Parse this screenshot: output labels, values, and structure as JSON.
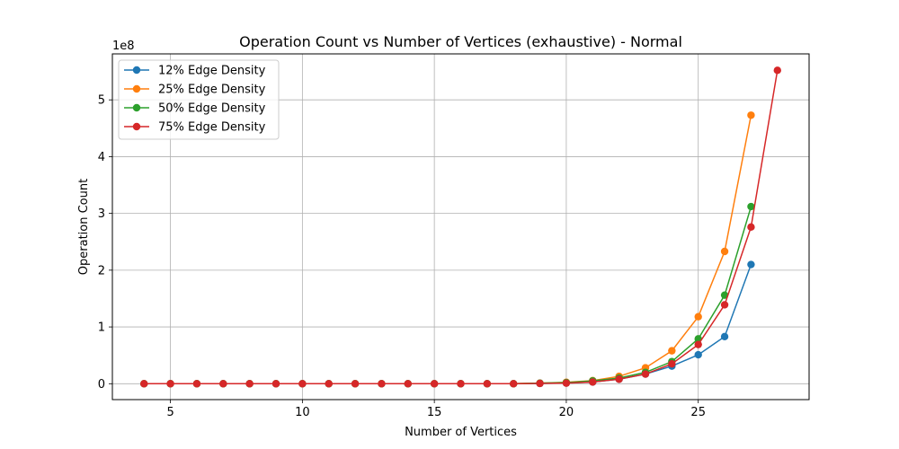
{
  "chart_data": {
    "type": "line",
    "title": "Operation Count vs Number of Vertices (exhaustive) - Normal",
    "xlabel": "Number of Vertices",
    "ylabel": "Operation Count",
    "y_multiplier_label": "1e8",
    "y_scale": 100000000,
    "xlim": [
      2.8,
      29.2
    ],
    "ylim": [
      -0.28,
      5.81
    ],
    "xticks": [
      5,
      10,
      15,
      20,
      25
    ],
    "yticks": [
      0,
      1,
      2,
      3,
      4,
      5
    ],
    "grid": true,
    "legend_position": "top-left",
    "series": [
      {
        "name": "12% Edge Density",
        "color": "#1f77b4",
        "x": [
          4,
          5,
          6,
          7,
          8,
          9,
          10,
          11,
          12,
          13,
          14,
          15,
          16,
          17,
          18,
          19,
          20,
          21,
          22,
          23,
          24,
          25,
          26,
          27
        ],
        "y": [
          0,
          0,
          0,
          0,
          0,
          0,
          0,
          0,
          0,
          0,
          0,
          0,
          0,
          0,
          0,
          0.005,
          0.012,
          0.03,
          0.08,
          0.17,
          0.31,
          0.51,
          0.83,
          2.1
        ]
      },
      {
        "name": "25% Edge Density",
        "color": "#ff7f0e",
        "x": [
          4,
          5,
          6,
          7,
          8,
          9,
          10,
          11,
          12,
          13,
          14,
          15,
          16,
          17,
          18,
          19,
          20,
          21,
          22,
          23,
          24,
          25,
          26,
          27
        ],
        "y": [
          0,
          0,
          0,
          0,
          0,
          0,
          0,
          0,
          0,
          0,
          0,
          0,
          0,
          0,
          0,
          0.01,
          0.025,
          0.055,
          0.13,
          0.28,
          0.58,
          1.18,
          2.33,
          4.73
        ]
      },
      {
        "name": "50% Edge Density",
        "color": "#2ca02c",
        "x": [
          4,
          5,
          6,
          7,
          8,
          9,
          10,
          11,
          12,
          13,
          14,
          15,
          16,
          17,
          18,
          19,
          20,
          21,
          22,
          23,
          24,
          25,
          26,
          27
        ],
        "y": [
          0,
          0,
          0,
          0,
          0,
          0,
          0,
          0,
          0,
          0,
          0,
          0,
          0,
          0,
          0,
          0.01,
          0.02,
          0.05,
          0.1,
          0.2,
          0.39,
          0.79,
          1.56,
          3.12
        ]
      },
      {
        "name": "75% Edge Density",
        "color": "#d62728",
        "x": [
          4,
          5,
          6,
          7,
          8,
          9,
          10,
          11,
          12,
          13,
          14,
          15,
          16,
          17,
          18,
          19,
          20,
          21,
          22,
          23,
          24,
          25,
          26,
          27,
          28
        ],
        "y": [
          0,
          0,
          0,
          0,
          0,
          0,
          0,
          0,
          0,
          0,
          0,
          0,
          0,
          0,
          0,
          0.005,
          0.01,
          0.03,
          0.08,
          0.17,
          0.35,
          0.69,
          1.39,
          2.76,
          5.52
        ]
      }
    ]
  }
}
